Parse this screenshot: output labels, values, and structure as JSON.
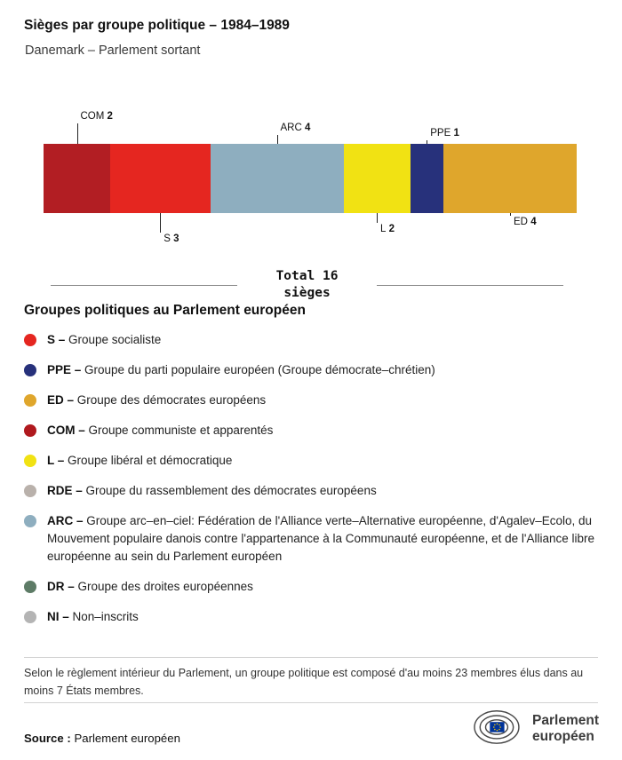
{
  "page": {
    "title": "Sièges par groupe politique – 1984–1989",
    "subtitle": "Danemark – Parlement sortant"
  },
  "chart_data": {
    "type": "bar",
    "title": "Sièges par groupe politique – 1984–1989",
    "subtitle": "Danemark – Parlement sortant",
    "orientation": "horizontal-stacked",
    "total_label": "Total",
    "total_seats": 16,
    "total_unit": "sièges",
    "categories": [
      "COM",
      "S",
      "ARC",
      "L",
      "PPE",
      "ED"
    ],
    "values": [
      2,
      3,
      4,
      2,
      1,
      4
    ],
    "segments": [
      {
        "group": "COM",
        "seats": 2,
        "color": "#b21e23",
        "label_position": "above"
      },
      {
        "group": "S",
        "seats": 3,
        "color": "#e52620",
        "label_position": "below"
      },
      {
        "group": "ARC",
        "seats": 4,
        "color": "#8eaebf",
        "label_position": "above"
      },
      {
        "group": "L",
        "seats": 2,
        "color": "#f1e213",
        "label_position": "below"
      },
      {
        "group": "PPE",
        "seats": 1,
        "color": "#27317b",
        "label_position": "above"
      },
      {
        "group": "ED",
        "seats": 4,
        "color": "#dfa62c",
        "label_position": "below"
      }
    ]
  },
  "legend": {
    "heading": "Groupes politiques au Parlement européen",
    "items": [
      {
        "abbr": "S –",
        "description": "Groupe socialiste",
        "color": "#e52620"
      },
      {
        "abbr": "PPE –",
        "description": "Groupe du parti populaire européen (Groupe démocrate–chrétien)",
        "color": "#27317b"
      },
      {
        "abbr": "ED –",
        "description": "Groupe des démocrates européens",
        "color": "#dfa62c"
      },
      {
        "abbr": "COM –",
        "description": "Groupe communiste et apparentés",
        "color": "#b0191e"
      },
      {
        "abbr": "L –",
        "description": "Groupe libéral et démocratique",
        "color": "#f1e213"
      },
      {
        "abbr": "RDE –",
        "description": "Groupe du rassemblement des démocrates européens",
        "color": "#b9b1ab"
      },
      {
        "abbr": "ARC –",
        "description": "Groupe arc–en–ciel: Fédération de l'Alliance verte–Alternative européenne, d'Agalev–Ecolo, du Mouvement populaire danois contre l'appartenance à la Communauté européenne, et de l'Alliance libre européenne au sein du Parlement européen",
        "color": "#8eaebf"
      },
      {
        "abbr": "DR –",
        "description": "Groupe des droites européennes",
        "color": "#5d7b66"
      },
      {
        "abbr": "NI –",
        "description": "Non–inscrits",
        "color": "#b4b4b4"
      }
    ]
  },
  "footnote": "Selon le règlement intérieur du Parlement, un groupe politique est composé d'au moins 23 membres élus dans au moins 7 États membres.",
  "source": {
    "label": "Source :",
    "value": "Parlement européen"
  },
  "logo": {
    "line1": "Parlement",
    "line2": "européen"
  }
}
